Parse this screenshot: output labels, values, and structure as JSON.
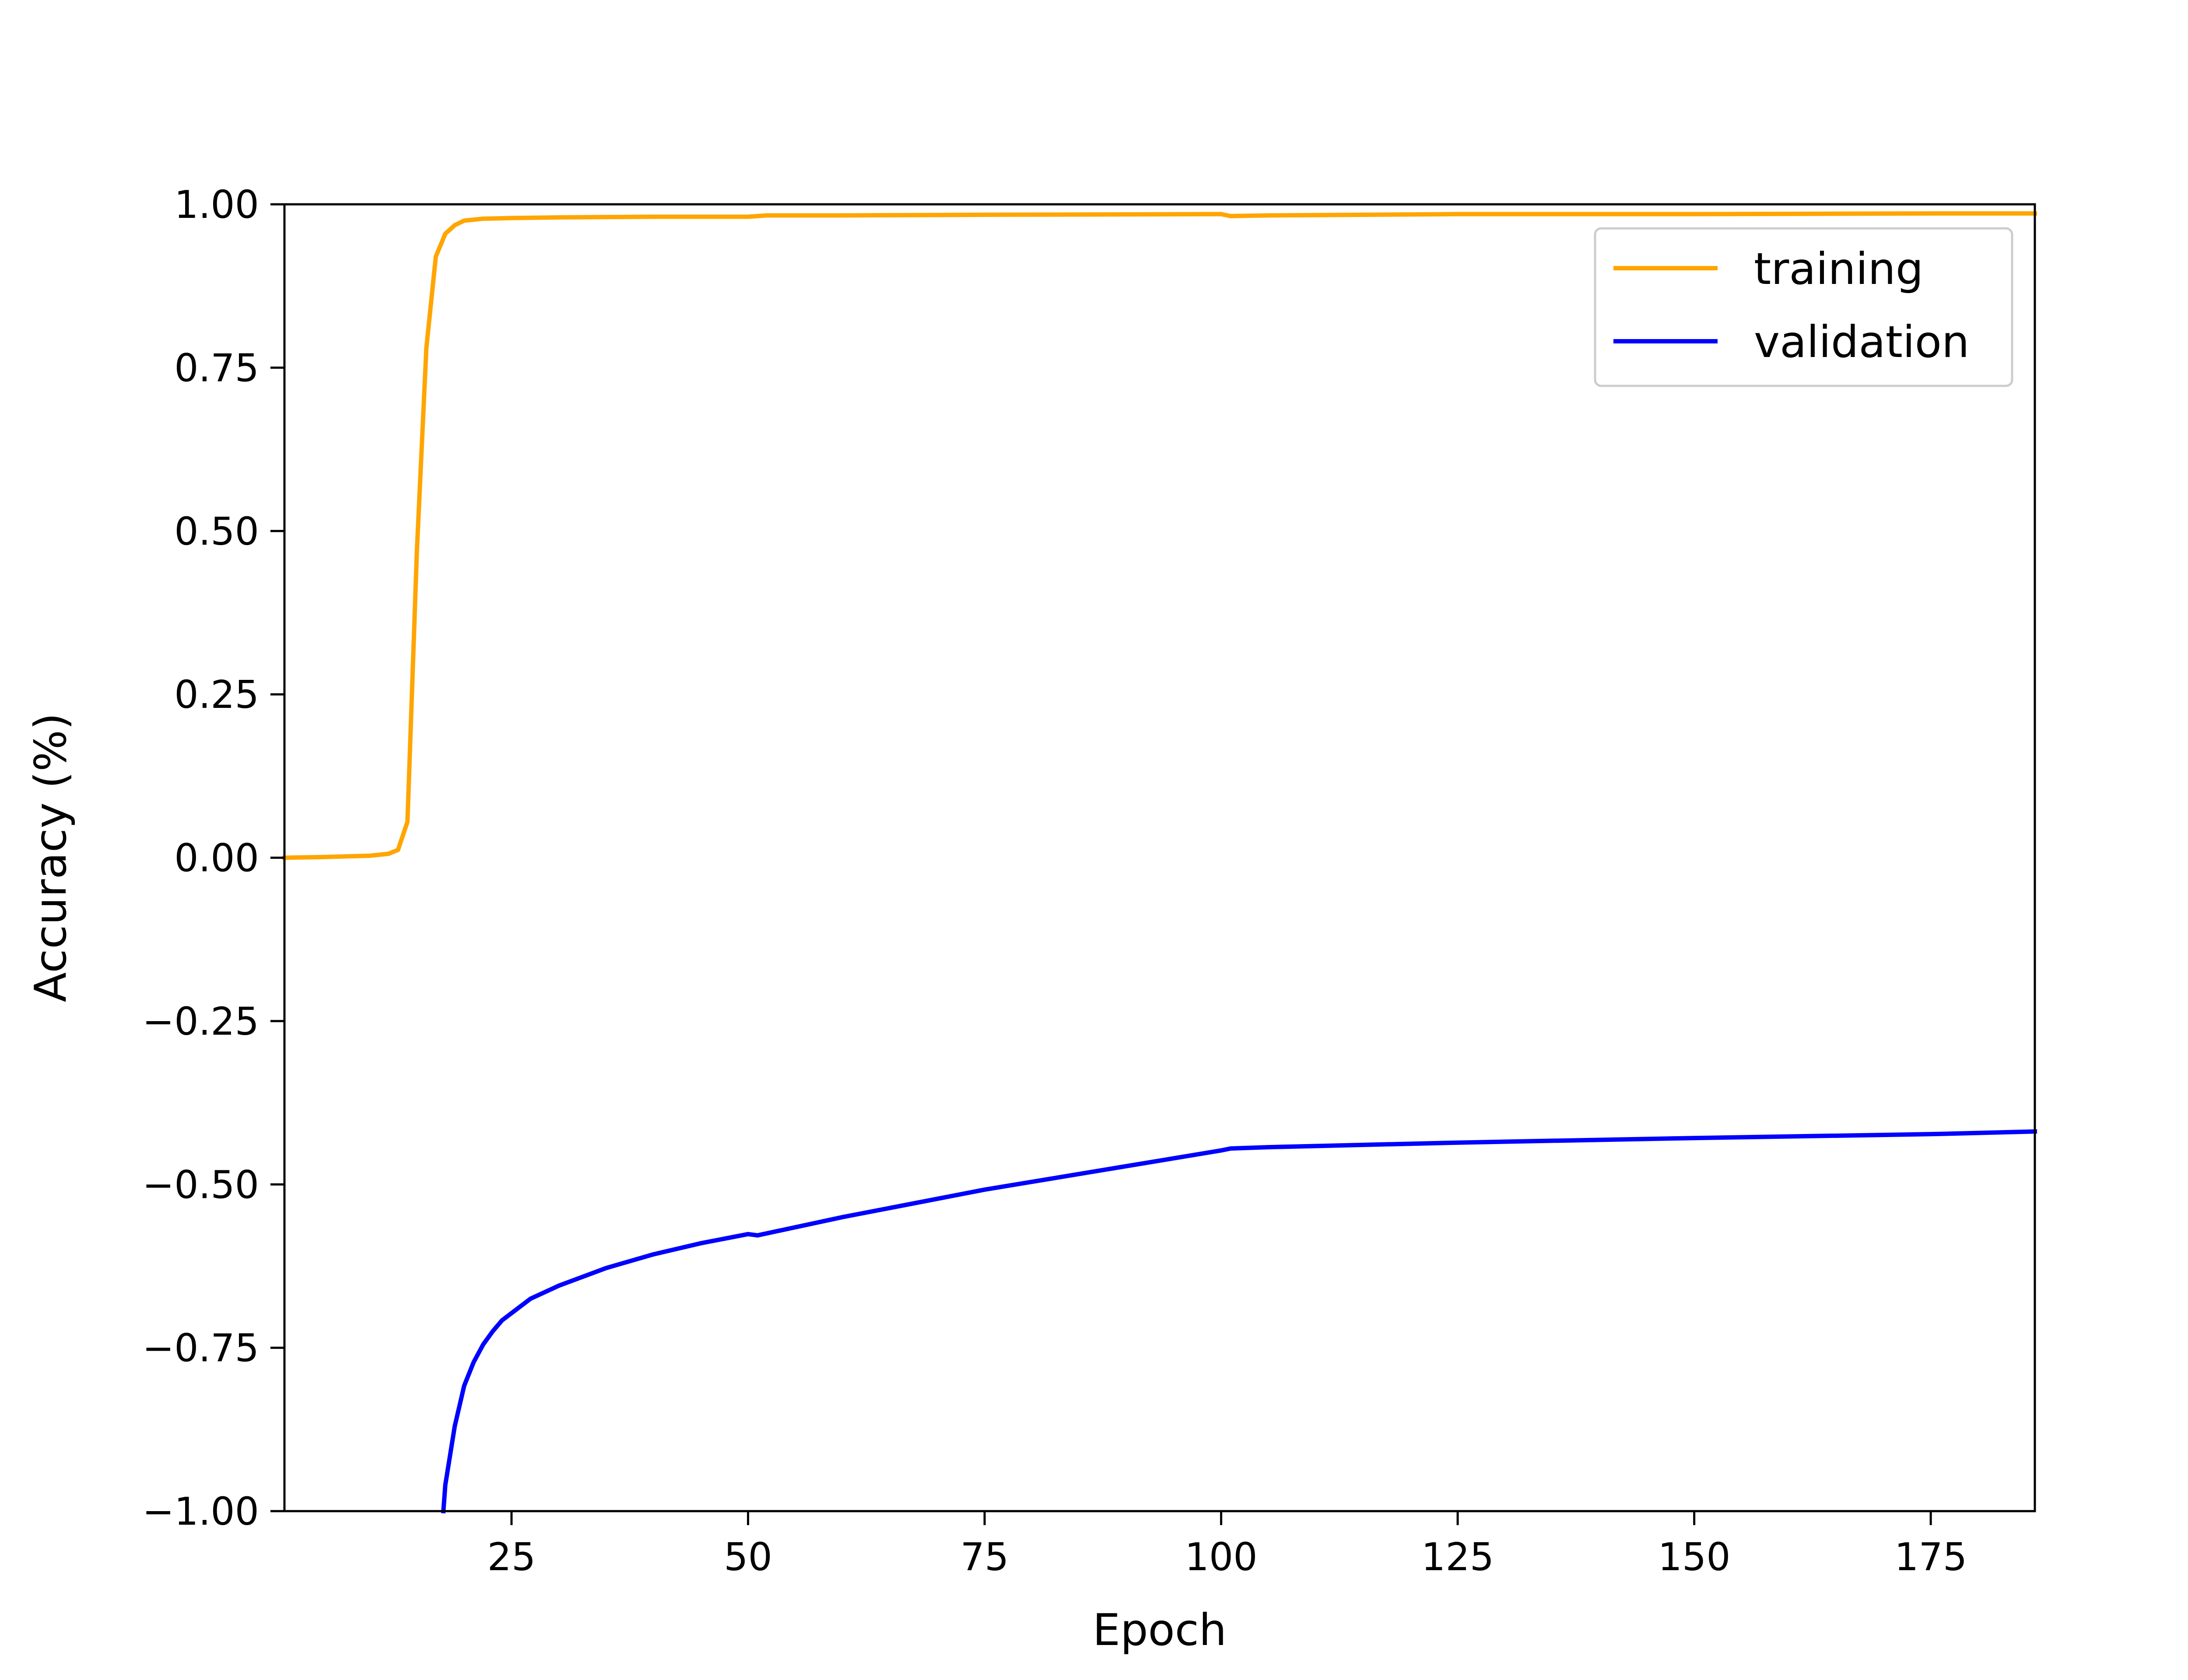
{
  "chart_data": {
    "type": "line",
    "title": "",
    "xlabel": "Epoch",
    "ylabel": "Accuracy (%)",
    "xlim": [
      1,
      186
    ],
    "ylim": [
      -1.0,
      1.0
    ],
    "xticks": [
      25,
      50,
      75,
      100,
      125,
      150,
      175
    ],
    "xtick_labels": [
      "25",
      "50",
      "75",
      "100",
      "125",
      "150",
      "175"
    ],
    "yticks": [
      1.0,
      0.75,
      0.5,
      0.25,
      0.0,
      -0.25,
      -0.5,
      -0.75,
      -1.0
    ],
    "ytick_labels": [
      "1.00",
      "0.75",
      "0.50",
      "0.25",
      "0.00",
      "−0.25",
      "−0.50",
      "−0.75",
      "−1.00"
    ],
    "grid": false,
    "legend_position": "top-right",
    "series": [
      {
        "name": "training",
        "color": "#ffa500",
        "x": [
          1,
          5,
          10,
          12,
          13,
          14,
          15,
          16,
          17,
          18,
          19,
          20,
          22,
          25,
          30,
          40,
          50,
          52,
          60,
          75,
          100,
          101,
          105,
          125,
          150,
          175,
          186
        ],
        "y": [
          0.0,
          0.001,
          0.003,
          0.006,
          0.012,
          0.055,
          0.47,
          0.78,
          0.92,
          0.955,
          0.968,
          0.975,
          0.978,
          0.979,
          0.98,
          0.981,
          0.981,
          0.983,
          0.983,
          0.984,
          0.985,
          0.982,
          0.983,
          0.985,
          0.985,
          0.986,
          0.986
        ]
      },
      {
        "name": "validation",
        "color": "#0000ff",
        "x": [
          17.8,
          18,
          19,
          20,
          21,
          22,
          23,
          24,
          25,
          27,
          30,
          35,
          40,
          45,
          50,
          51,
          60,
          75,
          100,
          101,
          105,
          125,
          150,
          175,
          186
        ],
        "y": [
          -1.0,
          -0.96,
          -0.87,
          -0.808,
          -0.772,
          -0.745,
          -0.725,
          -0.708,
          -0.697,
          -0.675,
          -0.655,
          -0.628,
          -0.607,
          -0.59,
          -0.576,
          -0.578,
          -0.55,
          -0.508,
          -0.448,
          -0.445,
          -0.443,
          -0.436,
          -0.429,
          -0.423,
          -0.419
        ]
      }
    ]
  }
}
